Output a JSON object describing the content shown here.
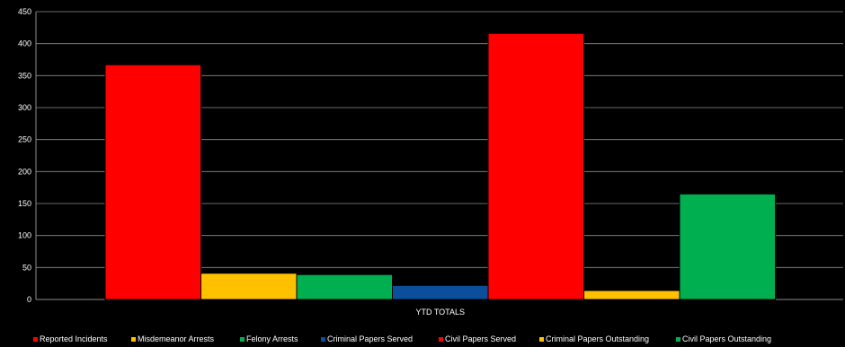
{
  "chart_data": {
    "type": "bar",
    "categories": [
      "YTD TOTALS"
    ],
    "series": [
      {
        "name": "Reported Incidents",
        "values": [
          367
        ],
        "color": "#ff0000"
      },
      {
        "name": "Misdemeanor Arrests",
        "values": [
          41
        ],
        "color": "#ffc000"
      },
      {
        "name": "Felony Arrests",
        "values": [
          39
        ],
        "color": "#00b050"
      },
      {
        "name": "Criminal Papers Served",
        "values": [
          22
        ],
        "color": "#0b4f9c"
      },
      {
        "name": "Civil Papers Served",
        "values": [
          416
        ],
        "color": "#ff0000"
      },
      {
        "name": "Criminal Papers Outstanding",
        "values": [
          14
        ],
        "color": "#ffc000"
      },
      {
        "name": "Civil Papers Outstanding",
        "values": [
          165
        ],
        "color": "#00b050"
      }
    ],
    "title": "",
    "xlabel": "",
    "ylabel": "",
    "ylim": [
      0,
      450
    ],
    "yticks": [
      0,
      50,
      100,
      150,
      200,
      250,
      300,
      350,
      400,
      450
    ],
    "grid": true,
    "legend": "bottom",
    "background": "#000000",
    "text_color": "#ffffff"
  }
}
